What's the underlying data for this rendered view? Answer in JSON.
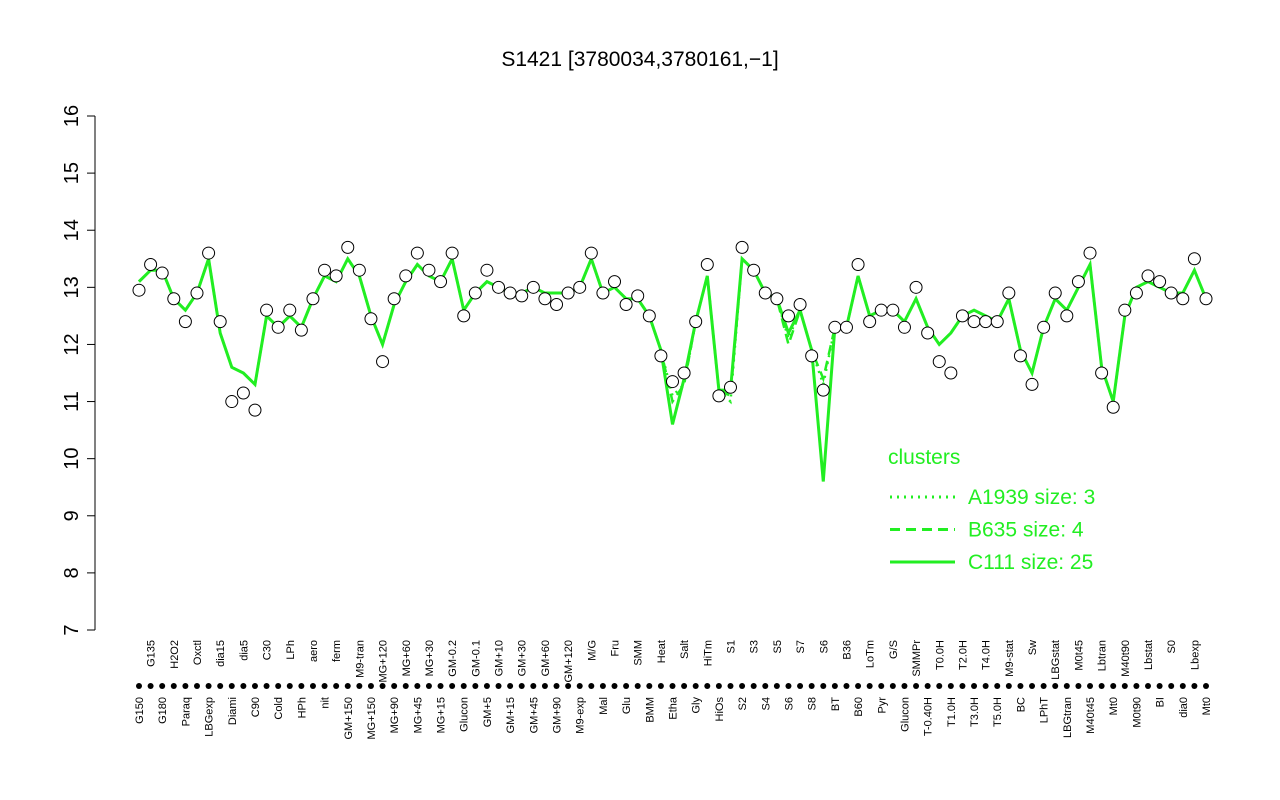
{
  "chart_data": {
    "type": "line",
    "title": "S1421 [3780034,3780161,−1]",
    "categories": [
      "G150",
      "G135",
      "G180",
      "H2O2",
      "Paraq",
      "Oxctl",
      "LBGexp",
      "dia15",
      "Diami",
      "dia5",
      "C90",
      "C30",
      "Cold",
      "LPh",
      "HPh",
      "aero",
      "nit",
      "ferm",
      "GM+150",
      "M9-tran",
      "MG+150",
      "MG+120",
      "MG+90",
      "MG+60",
      "MG+45",
      "MG+30",
      "MG+15",
      "GM-0.2",
      "Glucon",
      "GM-0.1",
      "GM+5",
      "GM+10",
      "GM+15",
      "GM+30",
      "GM+45",
      "GM+60",
      "GM+90",
      "GM+120",
      "M9-exp",
      "M/G",
      "Mal",
      "Fru",
      "Glu",
      "SMM",
      "BMM",
      "Heat",
      "Etha",
      "Salt",
      "Gly",
      "HiTm",
      "HiOs",
      "S1",
      "S2",
      "S3",
      "S4",
      "S5",
      "S6",
      "S7",
      "S8",
      "S6",
      "BT",
      "B36",
      "B60",
      "LoTm",
      "Pyr",
      "G/S",
      "Glucon",
      "SMMPr",
      "T-0.40H",
      "T0.0H",
      "T1.0H",
      "T2.0H",
      "T3.0H",
      "T4.0H",
      "T5.0H",
      "M9-stat",
      "BC",
      "Sw",
      "LPhT",
      "LBGstat",
      "LBGtran",
      "M0t45",
      "M40t45",
      "Lbtran",
      "Mt0",
      "M40t90",
      "M0t90",
      "Lbstat",
      "BI",
      "S0",
      "dia0",
      "Lbexp",
      "Mt0"
    ],
    "points": {
      "values": [
        12.95,
        13.4,
        13.25,
        12.8,
        12.4,
        12.9,
        13.6,
        12.4,
        11.0,
        11.15,
        10.85,
        12.6,
        12.3,
        12.6,
        12.25,
        12.8,
        13.3,
        13.2,
        13.7,
        13.3,
        12.45,
        11.7,
        12.8,
        13.2,
        13.6,
        13.3,
        13.1,
        13.6,
        12.5,
        12.9,
        13.3,
        13.0,
        12.9,
        12.85,
        13.0,
        12.8,
        12.7,
        12.9,
        13.0,
        13.6,
        12.9,
        13.1,
        12.7,
        12.85,
        12.5,
        11.8,
        11.35,
        11.5,
        12.4,
        13.4,
        11.1,
        11.25,
        13.7,
        13.3,
        12.9,
        12.8,
        12.5,
        12.7,
        11.8,
        11.2,
        12.3,
        12.3,
        13.4,
        12.4,
        12.6,
        12.6,
        12.3,
        13.0,
        12.2,
        11.7,
        11.5,
        12.5,
        12.4,
        12.4,
        12.4,
        12.9,
        11.8,
        11.3,
        12.3,
        12.9,
        12.5,
        13.1,
        13.6,
        11.5,
        10.9,
        12.6,
        12.9,
        13.2,
        13.1,
        12.9,
        12.8,
        13.5,
        12.8
      ]
    },
    "series": [
      {
        "name": "A1939 size: 3",
        "style": "dotted",
        "color": "#22ee22",
        "values": [
          13.1,
          13.3,
          13.3,
          12.8,
          12.6,
          12.9,
          13.5,
          12.2,
          11.6,
          11.5,
          11.3,
          12.5,
          12.3,
          12.5,
          12.3,
          12.8,
          13.2,
          13.1,
          13.5,
          13.2,
          12.5,
          12.0,
          12.7,
          13.1,
          13.4,
          13.2,
          13.1,
          13.5,
          12.6,
          12.9,
          13.1,
          13.0,
          12.9,
          12.9,
          13.0,
          12.9,
          12.9,
          12.9,
          13.0,
          13.5,
          12.9,
          13.0,
          12.8,
          12.8,
          12.5,
          11.9,
          11.1,
          11.3,
          12.4,
          13.2,
          11.2,
          11.0,
          13.5,
          13.3,
          12.9,
          12.8,
          12.1,
          12.6,
          11.9,
          11.3,
          12.3,
          12.3,
          13.2,
          12.5,
          12.6,
          12.6,
          12.4,
          12.8,
          12.3,
          12.0,
          12.2,
          12.5,
          12.6,
          12.5,
          12.4,
          12.8,
          11.9,
          11.5,
          12.3,
          12.8,
          12.6,
          13.0,
          13.4,
          11.6,
          11.0,
          12.5,
          13.0,
          13.1,
          13.0,
          12.9,
          12.9,
          13.3,
          12.8
        ]
      },
      {
        "name": "B635 size: 4",
        "style": "dashed",
        "color": "#22ee22",
        "values": [
          13.1,
          13.3,
          13.3,
          12.8,
          12.6,
          12.9,
          13.5,
          12.2,
          11.6,
          11.5,
          11.3,
          12.5,
          12.3,
          12.5,
          12.3,
          12.8,
          13.2,
          13.1,
          13.5,
          13.2,
          12.5,
          12.0,
          12.7,
          13.1,
          13.4,
          13.2,
          13.1,
          13.5,
          12.6,
          12.9,
          13.1,
          13.0,
          12.9,
          12.9,
          13.0,
          12.9,
          12.9,
          12.9,
          13.0,
          13.5,
          12.9,
          13.0,
          12.8,
          12.8,
          12.5,
          11.9,
          11.0,
          11.3,
          12.4,
          13.2,
          11.2,
          11.1,
          13.5,
          13.3,
          12.9,
          12.8,
          12.0,
          12.6,
          11.9,
          11.4,
          12.3,
          12.3,
          13.2,
          12.5,
          12.6,
          12.6,
          12.4,
          12.8,
          12.3,
          12.0,
          12.2,
          12.5,
          12.6,
          12.5,
          12.4,
          12.8,
          11.9,
          11.5,
          12.3,
          12.8,
          12.6,
          13.0,
          13.4,
          11.6,
          11.0,
          12.5,
          13.0,
          13.1,
          13.0,
          12.9,
          12.9,
          13.3,
          12.8
        ]
      },
      {
        "name": "C111 size: 25",
        "style": "solid",
        "color": "#22ee22",
        "values": [
          13.1,
          13.3,
          13.3,
          12.8,
          12.6,
          12.9,
          13.5,
          12.2,
          11.6,
          11.5,
          11.3,
          12.5,
          12.3,
          12.5,
          12.3,
          12.8,
          13.2,
          13.1,
          13.5,
          13.2,
          12.5,
          12.0,
          12.7,
          13.1,
          13.4,
          13.2,
          13.1,
          13.5,
          12.6,
          12.9,
          13.1,
          13.0,
          12.9,
          12.9,
          13.0,
          12.9,
          12.9,
          12.9,
          13.0,
          13.5,
          12.9,
          13.0,
          12.8,
          12.8,
          12.5,
          11.9,
          10.6,
          11.4,
          12.4,
          13.2,
          11.2,
          11.2,
          13.5,
          13.3,
          12.9,
          12.8,
          12.2,
          12.6,
          11.9,
          9.6,
          12.3,
          12.3,
          13.2,
          12.5,
          12.6,
          12.6,
          12.4,
          12.8,
          12.3,
          12.0,
          12.2,
          12.5,
          12.6,
          12.5,
          12.4,
          12.8,
          11.9,
          11.5,
          12.3,
          12.8,
          12.6,
          13.0,
          13.4,
          11.6,
          11.0,
          12.5,
          13.0,
          13.1,
          13.0,
          12.9,
          12.9,
          13.3,
          12.8
        ]
      }
    ],
    "legend_title": "clusters",
    "ylim": [
      7,
      16
    ],
    "yticks": [
      7,
      8,
      9,
      10,
      11,
      12,
      13,
      14,
      15,
      16
    ]
  }
}
